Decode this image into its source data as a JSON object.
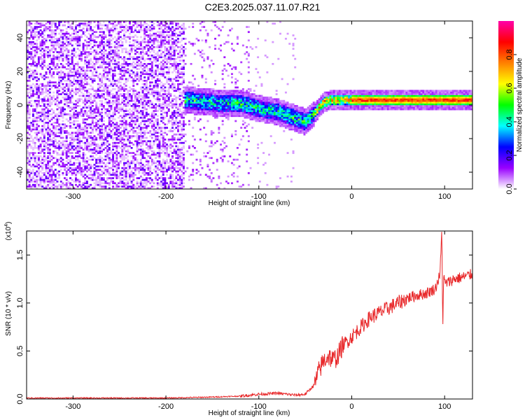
{
  "title": "C2E3.2025.037.11.07.R21",
  "chart_data": [
    {
      "type": "heatmap",
      "xlabel": "Height of straight line (km)",
      "ylabel": "Frequency (Hz)",
      "xlim": [
        -350,
        130
      ],
      "ylim": [
        -50,
        50
      ],
      "x_ticks": [
        -300,
        -200,
        -100,
        0,
        100
      ],
      "y_ticks": [
        -40,
        -20,
        0,
        20,
        40
      ],
      "colorbar": {
        "label": "Normalized spectral amplitude",
        "range": [
          0,
          1
        ],
        "ticks": [
          0.0,
          0.2,
          0.4,
          0.6,
          0.8
        ],
        "tick_labels": [
          "0.0",
          "0.2",
          "0.4",
          "0.6",
          "0.8"
        ],
        "colors": [
          "#ffffff",
          "#9900ff",
          "#0000ff",
          "#00ffff",
          "#00ff00",
          "#ffff00",
          "#ff8000",
          "#ff0000",
          "#ff00aa"
        ]
      },
      "ridge": {
        "x": [
          -180,
          -160,
          -140,
          -120,
          -100,
          -80,
          -65,
          -50,
          -40,
          -30,
          -20,
          0,
          50,
          90,
          100,
          130
        ],
        "y": [
          3,
          2,
          1,
          1,
          -2,
          -4,
          -7,
          -10,
          -5,
          2,
          3,
          3,
          3,
          3,
          3,
          3
        ]
      },
      "grid": false
    },
    {
      "type": "line",
      "xlabel": "Height of straight line (km)",
      "ylabel": "SNR (10 * v/v)",
      "y_multiplier": "(x10^4)",
      "multiplier_base": "(x10",
      "multiplier_exp": "4",
      "multiplier_close": ")",
      "xlim": [
        -350,
        130
      ],
      "ylim": [
        0,
        1.75
      ],
      "x_ticks": [
        -300,
        -200,
        -100,
        0,
        100
      ],
      "y_ticks": [
        0.0,
        0.5,
        1.0,
        1.5
      ],
      "y_tick_labels": [
        "0.0",
        "0.5",
        "1.0",
        "1.5"
      ],
      "series": [
        {
          "color": "#e8282a",
          "x": [
            -350,
            -300,
            -250,
            -200,
            -150,
            -120,
            -100,
            -80,
            -60,
            -50,
            -40,
            -35,
            -30,
            -25,
            -20,
            -15,
            -10,
            -5,
            0,
            10,
            20,
            30,
            40,
            50,
            60,
            70,
            80,
            90,
            95,
            97,
            98,
            99,
            100,
            105,
            110,
            120,
            130
          ],
          "y": [
            0.01,
            0.01,
            0.01,
            0.01,
            0.02,
            0.03,
            0.05,
            0.06,
            0.04,
            0.05,
            0.15,
            0.3,
            0.4,
            0.45,
            0.4,
            0.45,
            0.55,
            0.6,
            0.65,
            0.75,
            0.85,
            0.9,
            0.95,
            1.0,
            1.05,
            1.08,
            1.1,
            1.15,
            1.3,
            1.75,
            0.75,
            1.3,
            1.2,
            1.22,
            1.25,
            1.27,
            1.3
          ]
        }
      ],
      "grid": false
    }
  ]
}
